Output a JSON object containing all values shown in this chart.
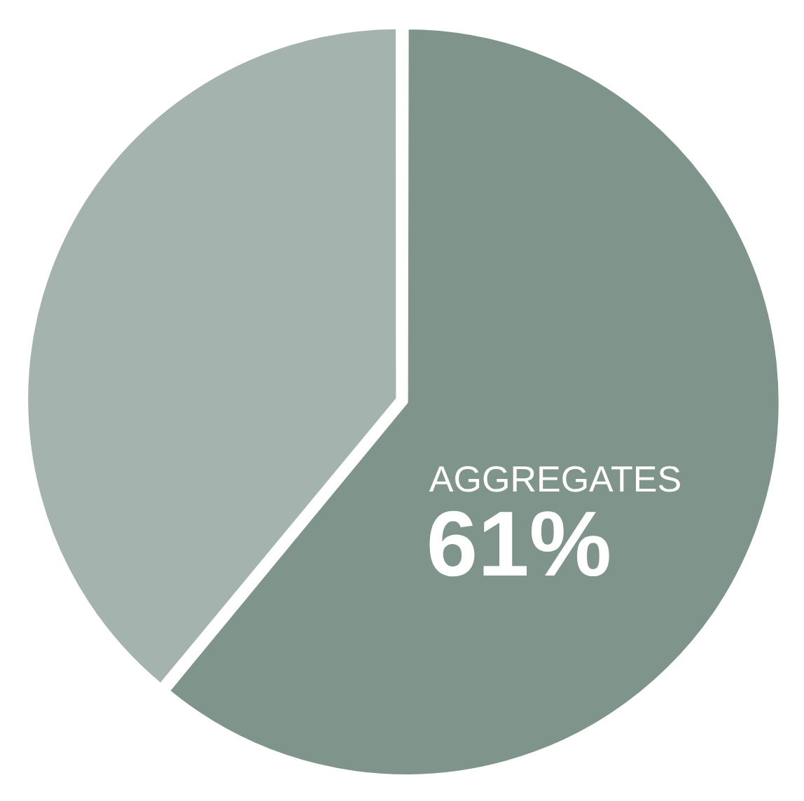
{
  "chart_data": {
    "type": "pie",
    "categories": [
      "AGGREGATES",
      null
    ],
    "values": [
      61,
      39
    ],
    "colors": [
      "#7f958b",
      "#a5b3ae"
    ],
    "value_labels": [
      "61%",
      null
    ]
  }
}
